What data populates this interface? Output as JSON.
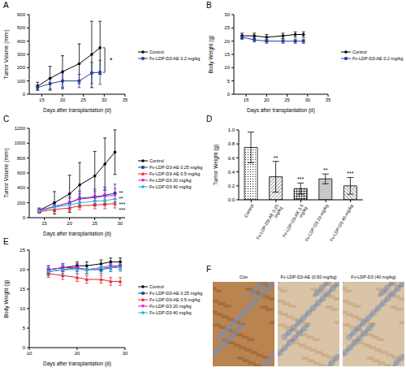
{
  "chart_data": [
    {
      "type": "line",
      "title": "A",
      "x_label": "Days after transplantation (d)",
      "y_label": "Tumor Volume (mm³)",
      "x": [
        14,
        17,
        20,
        24,
        27,
        29
      ],
      "xlim": [
        12,
        35
      ],
      "xticks": [
        15,
        20,
        25,
        30,
        35
      ],
      "ylim": [
        0,
        600
      ],
      "yticks": [
        0,
        100,
        200,
        300,
        400,
        500,
        600
      ],
      "grid": false,
      "legend": "right",
      "series": [
        {
          "name": "Control",
          "color": "#000000",
          "marker": "circle",
          "values": [
            60,
            120,
            170,
            230,
            300,
            350
          ],
          "errors": [
            30,
            90,
            120,
            150,
            250,
            200
          ]
        },
        {
          "name": "Fv-LDP-D3-AE 0.2 mg/kg",
          "color": "#1f3f99",
          "marker": "square",
          "values": [
            50,
            80,
            100,
            100,
            160,
            165
          ],
          "errors": [
            20,
            40,
            60,
            50,
            80,
            90
          ],
          "significance": "*"
        }
      ]
    },
    {
      "type": "line",
      "title": "B",
      "x_label": "Days after transplantation (d)",
      "y_label": "Body Weight (g)",
      "x": [
        14,
        17,
        20,
        24,
        27,
        29
      ],
      "xlim": [
        12,
        35
      ],
      "xticks": [
        15,
        20,
        25,
        30,
        35
      ],
      "ylim": [
        0,
        30
      ],
      "yticks": [
        0,
        5,
        10,
        15,
        20,
        25,
        30
      ],
      "grid": false,
      "legend": "right",
      "series": [
        {
          "name": "Control",
          "color": "#000000",
          "marker": "circle",
          "values": [
            22,
            22,
            21.5,
            22,
            22.5,
            22.5
          ],
          "errors": [
            1,
            1,
            1,
            1,
            1,
            1
          ]
        },
        {
          "name": "Fv-LDP-D3-AE 0.2 mg/kg",
          "color": "#1f3f99",
          "marker": "square",
          "values": [
            21.5,
            20.5,
            20,
            20,
            20,
            20
          ],
          "errors": [
            0.8,
            0.8,
            0.8,
            0.8,
            0.8,
            0.8
          ]
        }
      ]
    },
    {
      "type": "line",
      "title": "C",
      "x_label": "Days after transplantation (d)",
      "y_label": "Tumor Volume (mm³)",
      "x": [
        14,
        17,
        20,
        22,
        25,
        27,
        29
      ],
      "xlim": [
        12,
        31
      ],
      "xticks": [
        15,
        20,
        25,
        30
      ],
      "ylim": [
        0,
        1200
      ],
      "yticks": [
        0,
        200,
        400,
        600,
        800,
        1000,
        1200
      ],
      "grid": false,
      "legend": "right",
      "series": [
        {
          "name": "Control",
          "color": "#000000",
          "marker": "circle",
          "values": [
            100,
            200,
            320,
            440,
            560,
            720,
            880
          ],
          "errors": [
            30,
            150,
            250,
            300,
            330,
            350,
            300
          ]
        },
        {
          "name": "Fv-LDP-D3-AE 0.25 mg/kg",
          "color": "#1f3f99",
          "marker": "square",
          "values": [
            90,
            150,
            200,
            260,
            280,
            300,
            330
          ],
          "errors": [
            20,
            60,
            80,
            100,
            100,
            110,
            120
          ],
          "significance": "**"
        },
        {
          "name": "Fv-LDP-D3-AE 0.5 mg/kg",
          "color": "#e8212a",
          "marker": "triangle",
          "values": [
            80,
            110,
            130,
            160,
            170,
            180,
            190
          ],
          "errors": [
            20,
            30,
            40,
            50,
            50,
            60,
            60
          ],
          "significance": "***"
        },
        {
          "name": "Fv-LDP-D3 20 mg/kg",
          "color": "#d41bd4",
          "marker": "triangle-down",
          "values": [
            100,
            150,
            200,
            250,
            270,
            290,
            300
          ],
          "errors": [
            20,
            50,
            60,
            70,
            80,
            80,
            90
          ],
          "significance": "**"
        },
        {
          "name": "Fv-LDP-D3 40 mg/kg",
          "color": "#24b8d6",
          "marker": "diamond",
          "values": [
            90,
            140,
            170,
            200,
            220,
            230,
            250
          ],
          "errors": [
            20,
            40,
            50,
            60,
            60,
            70,
            70
          ],
          "significance": "***"
        }
      ]
    },
    {
      "type": "bar",
      "title": "D",
      "y_label": "Tumor Weight (g)",
      "categories": [
        "Control",
        "Fv-LDP-D3-AE 0.25 mg/kg",
        "Fv-LDP-D3-AE 0.5 mg/kg",
        "Fv-LDP-D3 20 mg/kg",
        "Fv-LDP-D3 40 mg/kg"
      ],
      "values": [
        0.75,
        0.33,
        0.16,
        0.3,
        0.2
      ],
      "errors": [
        0.22,
        0.22,
        0.08,
        0.07,
        0.12
      ],
      "annotations": [
        null,
        "**",
        "***",
        "**",
        "***"
      ],
      "color": "#000000",
      "ylim": [
        0,
        1.0
      ],
      "yticks": [
        {
          "value": 0,
          "label": "0.0"
        },
        0.2,
        0.4,
        0.6,
        0.8,
        {
          "value": 1.0,
          "label": "1.0"
        }
      ],
      "grid": false
    },
    {
      "type": "line",
      "title": "E",
      "x_label": "Days after transplantation (d)",
      "y_label": "Body Weight (g)",
      "x": [
        14,
        17,
        20,
        22,
        25,
        27,
        29
      ],
      "xlim": [
        10,
        30
      ],
      "xticks": [
        10,
        20,
        30
      ],
      "ylim": [
        0,
        25
      ],
      "yticks": [
        0,
        5,
        10,
        15,
        20,
        25
      ],
      "grid": false,
      "legend": "right",
      "series": [
        {
          "name": "Control",
          "color": "#000000",
          "marker": "circle",
          "values": [
            20,
            20.5,
            21,
            21,
            21.5,
            22,
            22
          ],
          "errors": [
            1,
            1,
            1,
            1,
            1,
            1,
            1
          ]
        },
        {
          "name": "Fv-LDP-D3-AE 0.25 mg/kg",
          "color": "#1f3f99",
          "marker": "square",
          "values": [
            19.5,
            20,
            20.5,
            20,
            20,
            20.5,
            21
          ],
          "errors": [
            1,
            1,
            1,
            1,
            1,
            1,
            1
          ]
        },
        {
          "name": "Fv-LDP-D3-AE 0.5 mg/kg",
          "color": "#e8212a",
          "marker": "triangle",
          "values": [
            19,
            18.5,
            18,
            17.5,
            17.5,
            17,
            17
          ],
          "errors": [
            1,
            1,
            1,
            1,
            1,
            1,
            1
          ]
        },
        {
          "name": "Fv-LDP-D3 20 mg/kg",
          "color": "#d41bd4",
          "marker": "triangle-down",
          "values": [
            20,
            20.5,
            20.5,
            20,
            20.5,
            21,
            21
          ],
          "errors": [
            1,
            1,
            1,
            1,
            1,
            1,
            1
          ]
        },
        {
          "name": "Fv-LDP-D3 40 mg/kg",
          "color": "#24b8d6",
          "marker": "diamond",
          "values": [
            19.5,
            20,
            20,
            20,
            20.5,
            20.5,
            20.5
          ],
          "errors": [
            1,
            1,
            1,
            1,
            1,
            1,
            1
          ]
        }
      ]
    }
  ],
  "image_panel": {
    "title": "F",
    "captions": [
      "Con",
      "Fv-LDP-D3-AE (0.50 mg/kg)",
      "Fv-LDP-D3 (40 mg/kg)"
    ]
  }
}
